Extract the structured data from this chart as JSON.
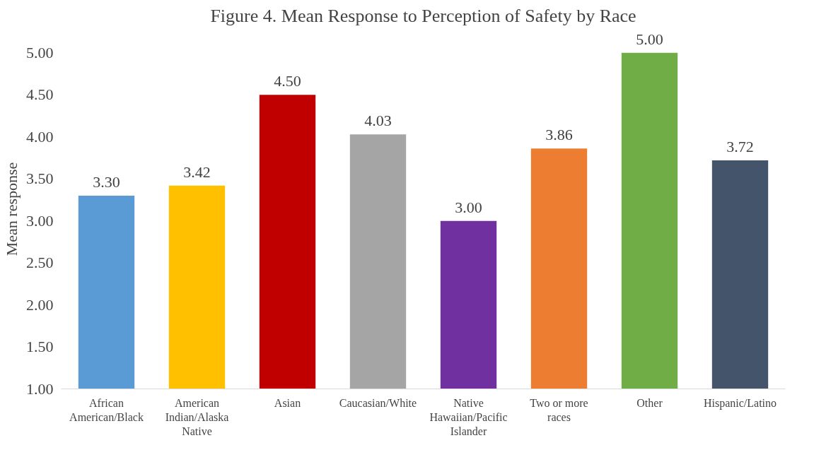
{
  "chart_data": {
    "type": "bar",
    "title": "Figure 4. Mean Response to Perception of Safety by Race",
    "ylabel": "Mean response",
    "categories": [
      "African American/Black",
      "American Indian/Alaska Native",
      "Asian",
      "Caucasian/White",
      "Native Hawaiian/Pacific Islander",
      "Two or more races",
      "Other",
      "Hispanic/Latino"
    ],
    "values": [
      3.3,
      3.42,
      4.5,
      4.03,
      3.0,
      3.86,
      5.0,
      3.72
    ],
    "value_labels": [
      "3.30",
      "3.42",
      "4.50",
      "4.03",
      "3.00",
      "3.86",
      "5.00",
      "3.72"
    ],
    "colors": [
      "#5b9bd5",
      "#ffc000",
      "#c00000",
      "#a5a5a5",
      "#7030a0",
      "#ed7d31",
      "#70ad47",
      "#44546a"
    ],
    "ylim": [
      1,
      5
    ],
    "yticks": [
      {
        "value": 1,
        "label": "1.00"
      },
      {
        "value": 1.5,
        "label": "1.50"
      },
      {
        "value": 2,
        "label": "2.00"
      },
      {
        "value": 2.5,
        "label": "2.50"
      },
      {
        "value": 3,
        "label": "3.00"
      },
      {
        "value": 3.5,
        "label": "3.50"
      },
      {
        "value": 4,
        "label": "4.00"
      },
      {
        "value": 4.5,
        "label": "4.50"
      },
      {
        "value": 5,
        "label": "5.00"
      }
    ],
    "grid": false
  }
}
